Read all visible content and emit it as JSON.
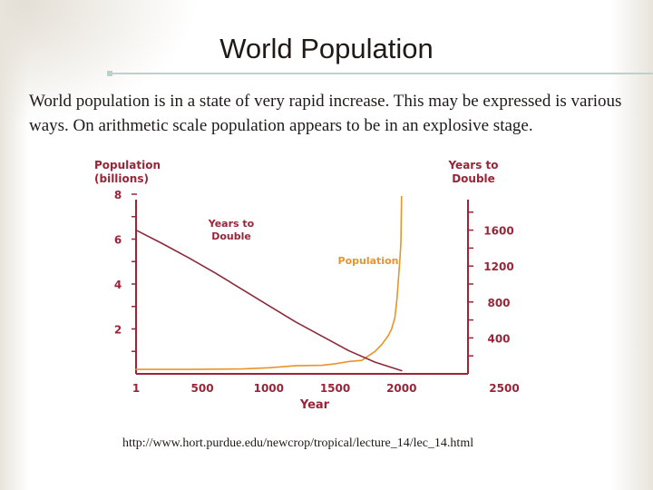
{
  "slide": {
    "title": "World Population",
    "body": "World population is in a state of very rapid increase.  This may be expressed is various ways.  On arithmetic scale population appears to be in an explosive stage.",
    "source": "http://www.hort.purdue.edu/newcrop/tropical/lecture_14/lec_14.html"
  },
  "chart_data": {
    "type": "line",
    "left_axis_title": [
      "Population",
      "(billions)"
    ],
    "right_axis_title": [
      "Years to",
      "Double"
    ],
    "xlabel": "Year",
    "x_ticks": [
      "1",
      "500",
      "1000",
      "1500",
      "2000",
      "2500"
    ],
    "left_ticks": [
      "2",
      "4",
      "6",
      "8"
    ],
    "right_ticks": [
      "400",
      "800",
      "1200",
      "1600"
    ],
    "xlim": [
      1,
      2500
    ],
    "ylim_left": [
      0,
      8
    ],
    "ylim_right": [
      0,
      2000
    ],
    "series": [
      {
        "name": "Population",
        "axis": "left",
        "color": "#e8942a",
        "x": [
          1,
          400,
          800,
          1000,
          1200,
          1400,
          1500,
          1600,
          1700,
          1750,
          1800,
          1850,
          1900,
          1925,
          1950,
          1965,
          1975,
          1985,
          1995,
          2000
        ],
        "y": [
          0.2,
          0.2,
          0.22,
          0.27,
          0.36,
          0.38,
          0.45,
          0.55,
          0.6,
          0.8,
          1.0,
          1.3,
          1.7,
          2.0,
          2.5,
          3.3,
          4.1,
          4.9,
          5.8,
          7.9
        ]
      },
      {
        "name": "Years to Double",
        "axis": "right",
        "color": "#8a2a3a",
        "x": [
          1,
          200,
          400,
          600,
          800,
          1000,
          1200,
          1400,
          1600,
          1800,
          2000
        ],
        "y": [
          1600,
          1450,
          1290,
          1120,
          940,
          760,
          580,
          420,
          260,
          130,
          35
        ]
      }
    ],
    "annotations": [
      {
        "text": [
          "Years to",
          "Double"
        ],
        "near_series": "Years to Double"
      },
      {
        "text": [
          "Population"
        ],
        "near_series": "Population"
      }
    ]
  }
}
